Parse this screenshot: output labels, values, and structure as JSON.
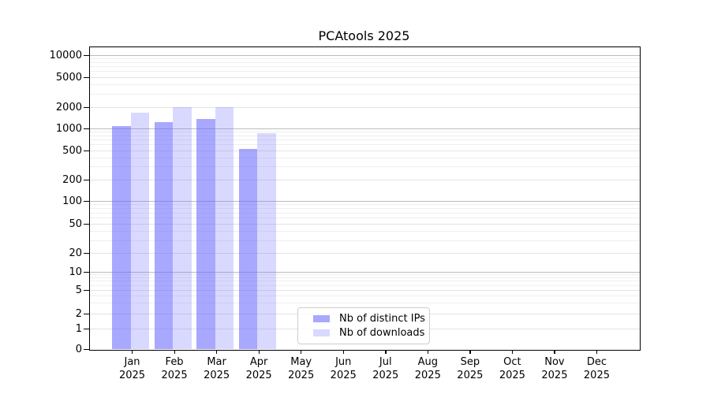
{
  "title": "PCAtools 2025",
  "legend": [
    {
      "label": "Nb of distinct IPs",
      "color": "rgba(102,102,255,0.57)"
    },
    {
      "label": "Nb of downloads",
      "color": "rgba(102,102,255,0.25)"
    }
  ],
  "chart_data": {
    "type": "bar",
    "title": "PCAtools 2025",
    "yscale": "log (symlog, 0 at baseline)",
    "grid": true,
    "legend_position": "bottom-center inside plot",
    "ylim": [
      0,
      13000
    ],
    "yticks": [
      0,
      1,
      2,
      5,
      10,
      20,
      50,
      100,
      200,
      500,
      1000,
      2000,
      5000,
      10000
    ],
    "ytick_labels": [
      "0",
      "1",
      "2",
      "5",
      "10",
      "20",
      "50",
      "100",
      "200",
      "500",
      "1000",
      "2000",
      "5000",
      "10000"
    ],
    "categories": [
      "Jan 2025",
      "Feb 2025",
      "Mar 2025",
      "Apr 2025",
      "May 2025",
      "Jun 2025",
      "Jul 2025",
      "Aug 2025",
      "Sep 2025",
      "Oct 2025",
      "Nov 2025",
      "Dec 2025"
    ],
    "series": [
      {
        "name": "Nb of distinct IPs",
        "color": "rgba(102,102,255,0.57)",
        "values": [
          1080,
          1230,
          1340,
          520,
          null,
          null,
          null,
          null,
          null,
          null,
          null,
          null
        ]
      },
      {
        "name": "Nb of downloads",
        "color": "rgba(102,102,255,0.25)",
        "values": [
          1650,
          2000,
          2000,
          860,
          null,
          null,
          null,
          null,
          null,
          null,
          null,
          null
        ]
      }
    ]
  }
}
